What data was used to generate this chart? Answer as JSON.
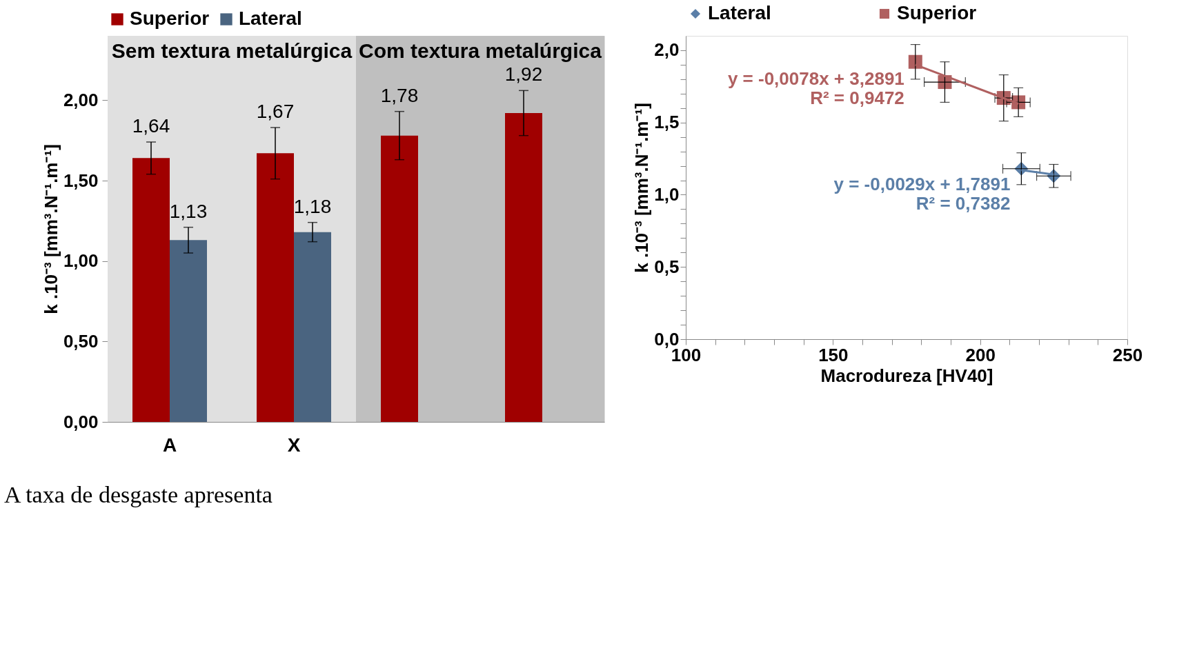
{
  "chart_data": [
    {
      "type": "bar",
      "categories": [
        "A",
        "X",
        null,
        null
      ],
      "ylabel": "k .10⁻³ [mm³.N⁻¹.m⁻¹]",
      "ylim": [
        0,
        2.4
      ],
      "yticks": [
        {
          "value": 0,
          "label": "0,00"
        },
        {
          "value": 0.5,
          "label": "0,50"
        },
        {
          "value": 1,
          "label": "1,00"
        },
        {
          "value": 1.5,
          "label": "1,50"
        },
        {
          "value": 2,
          "label": "2,00"
        }
      ],
      "legend": "top",
      "annotations": [
        "Sem textura metalúrgica",
        "Com textura metalúrgica",
        "A taxa de desgaste apresenta"
      ],
      "series": [
        {
          "name": "Superior",
          "color": "#a00000",
          "values": [
            1.64,
            1.67,
            1.78,
            1.92
          ],
          "errors": [
            0.1,
            0.16,
            0.15,
            0.14
          ],
          "value_labels": [
            "1,64",
            "1,67",
            "1,78",
            "1,92"
          ]
        },
        {
          "name": "Lateral",
          "color": "#4a6480",
          "values": [
            1.13,
            1.18,
            null,
            null
          ],
          "errors": [
            0.08,
            0.06,
            null,
            null
          ],
          "value_labels": [
            "1,13",
            "1,18",
            null,
            null
          ]
        }
      ]
    },
    {
      "type": "scatter",
      "xlabel": "Macrodureza [HV40]",
      "ylabel": "k .10⁻³ [mm³.N⁻¹.m⁻¹]",
      "xlim": [
        100,
        250
      ],
      "xticks": [
        100,
        {
          "value": 110,
          "label": null
        },
        {
          "value": 120,
          "label": null
        },
        {
          "value": 130,
          "label": null
        },
        {
          "value": 140,
          "label": null
        },
        150,
        {
          "value": 160,
          "label": null
        },
        {
          "value": 170,
          "label": null
        },
        {
          "value": 180,
          "label": null
        },
        {
          "value": 190,
          "label": null
        },
        200,
        {
          "value": 210,
          "label": null
        },
        {
          "value": 220,
          "label": null
        },
        {
          "value": 230,
          "label": null
        },
        {
          "value": 240,
          "label": null
        },
        250
      ],
      "ylim": [
        0,
        2.1
      ],
      "yticks": [
        {
          "value": 0,
          "label": "0,0"
        },
        {
          "value": 0.1,
          "label": null
        },
        {
          "value": 0.2,
          "label": null
        },
        {
          "value": 0.3,
          "label": null
        },
        {
          "value": 0.4,
          "label": null
        },
        {
          "value": 0.5,
          "label": "0,5"
        },
        {
          "value": 0.6,
          "label": null
        },
        {
          "value": 0.7,
          "label": null
        },
        {
          "value": 0.8,
          "label": null
        },
        {
          "value": 0.9,
          "label": null
        },
        {
          "value": 1,
          "label": "1,0"
        },
        {
          "value": 1.1,
          "label": null
        },
        {
          "value": 1.2,
          "label": null
        },
        {
          "value": 1.3,
          "label": null
        },
        {
          "value": 1.4,
          "label": null
        },
        {
          "value": 1.5,
          "label": "1,5"
        },
        {
          "value": 1.6,
          "label": null
        },
        {
          "value": 1.7,
          "label": null
        },
        {
          "value": 1.8,
          "label": null
        },
        {
          "value": 1.9,
          "label": null
        },
        {
          "value": 2,
          "label": "2,0"
        }
      ],
      "legend": "top",
      "series": [
        {
          "name": "Lateral",
          "type": "scatter",
          "marker": "diamond",
          "color": "#5b7fa8",
          "x": [
            214,
            225
          ],
          "values": [
            1.18,
            1.13
          ],
          "errors": [
            0.11,
            0.08
          ],
          "xerrors": [
            6.3,
            5.8
          ]
        },
        {
          "name": "Superior",
          "type": "scatter",
          "marker": "square",
          "color": "#b06060",
          "x": [
            178,
            188,
            208,
            213
          ],
          "values": [
            1.92,
            1.78,
            1.67,
            1.64
          ],
          "errors": [
            0.12,
            0.14,
            0.16,
            0.1
          ],
          "xerrors": [
            null,
            7,
            3,
            4
          ]
        },
        {
          "name": "y = -0,0078x + 3,2891\nR² = 0,9472",
          "type": "line",
          "color": "#b06060",
          "x": [
            178,
            213
          ],
          "values": [
            1.9,
            1.63
          ]
        },
        {
          "name": "y = -0,0029x + 1,7891\nR² = 0,7382",
          "type": "line",
          "color": "#5b7fa8",
          "x": [
            214,
            225
          ],
          "values": [
            1.17,
            1.14
          ]
        }
      ]
    }
  ]
}
